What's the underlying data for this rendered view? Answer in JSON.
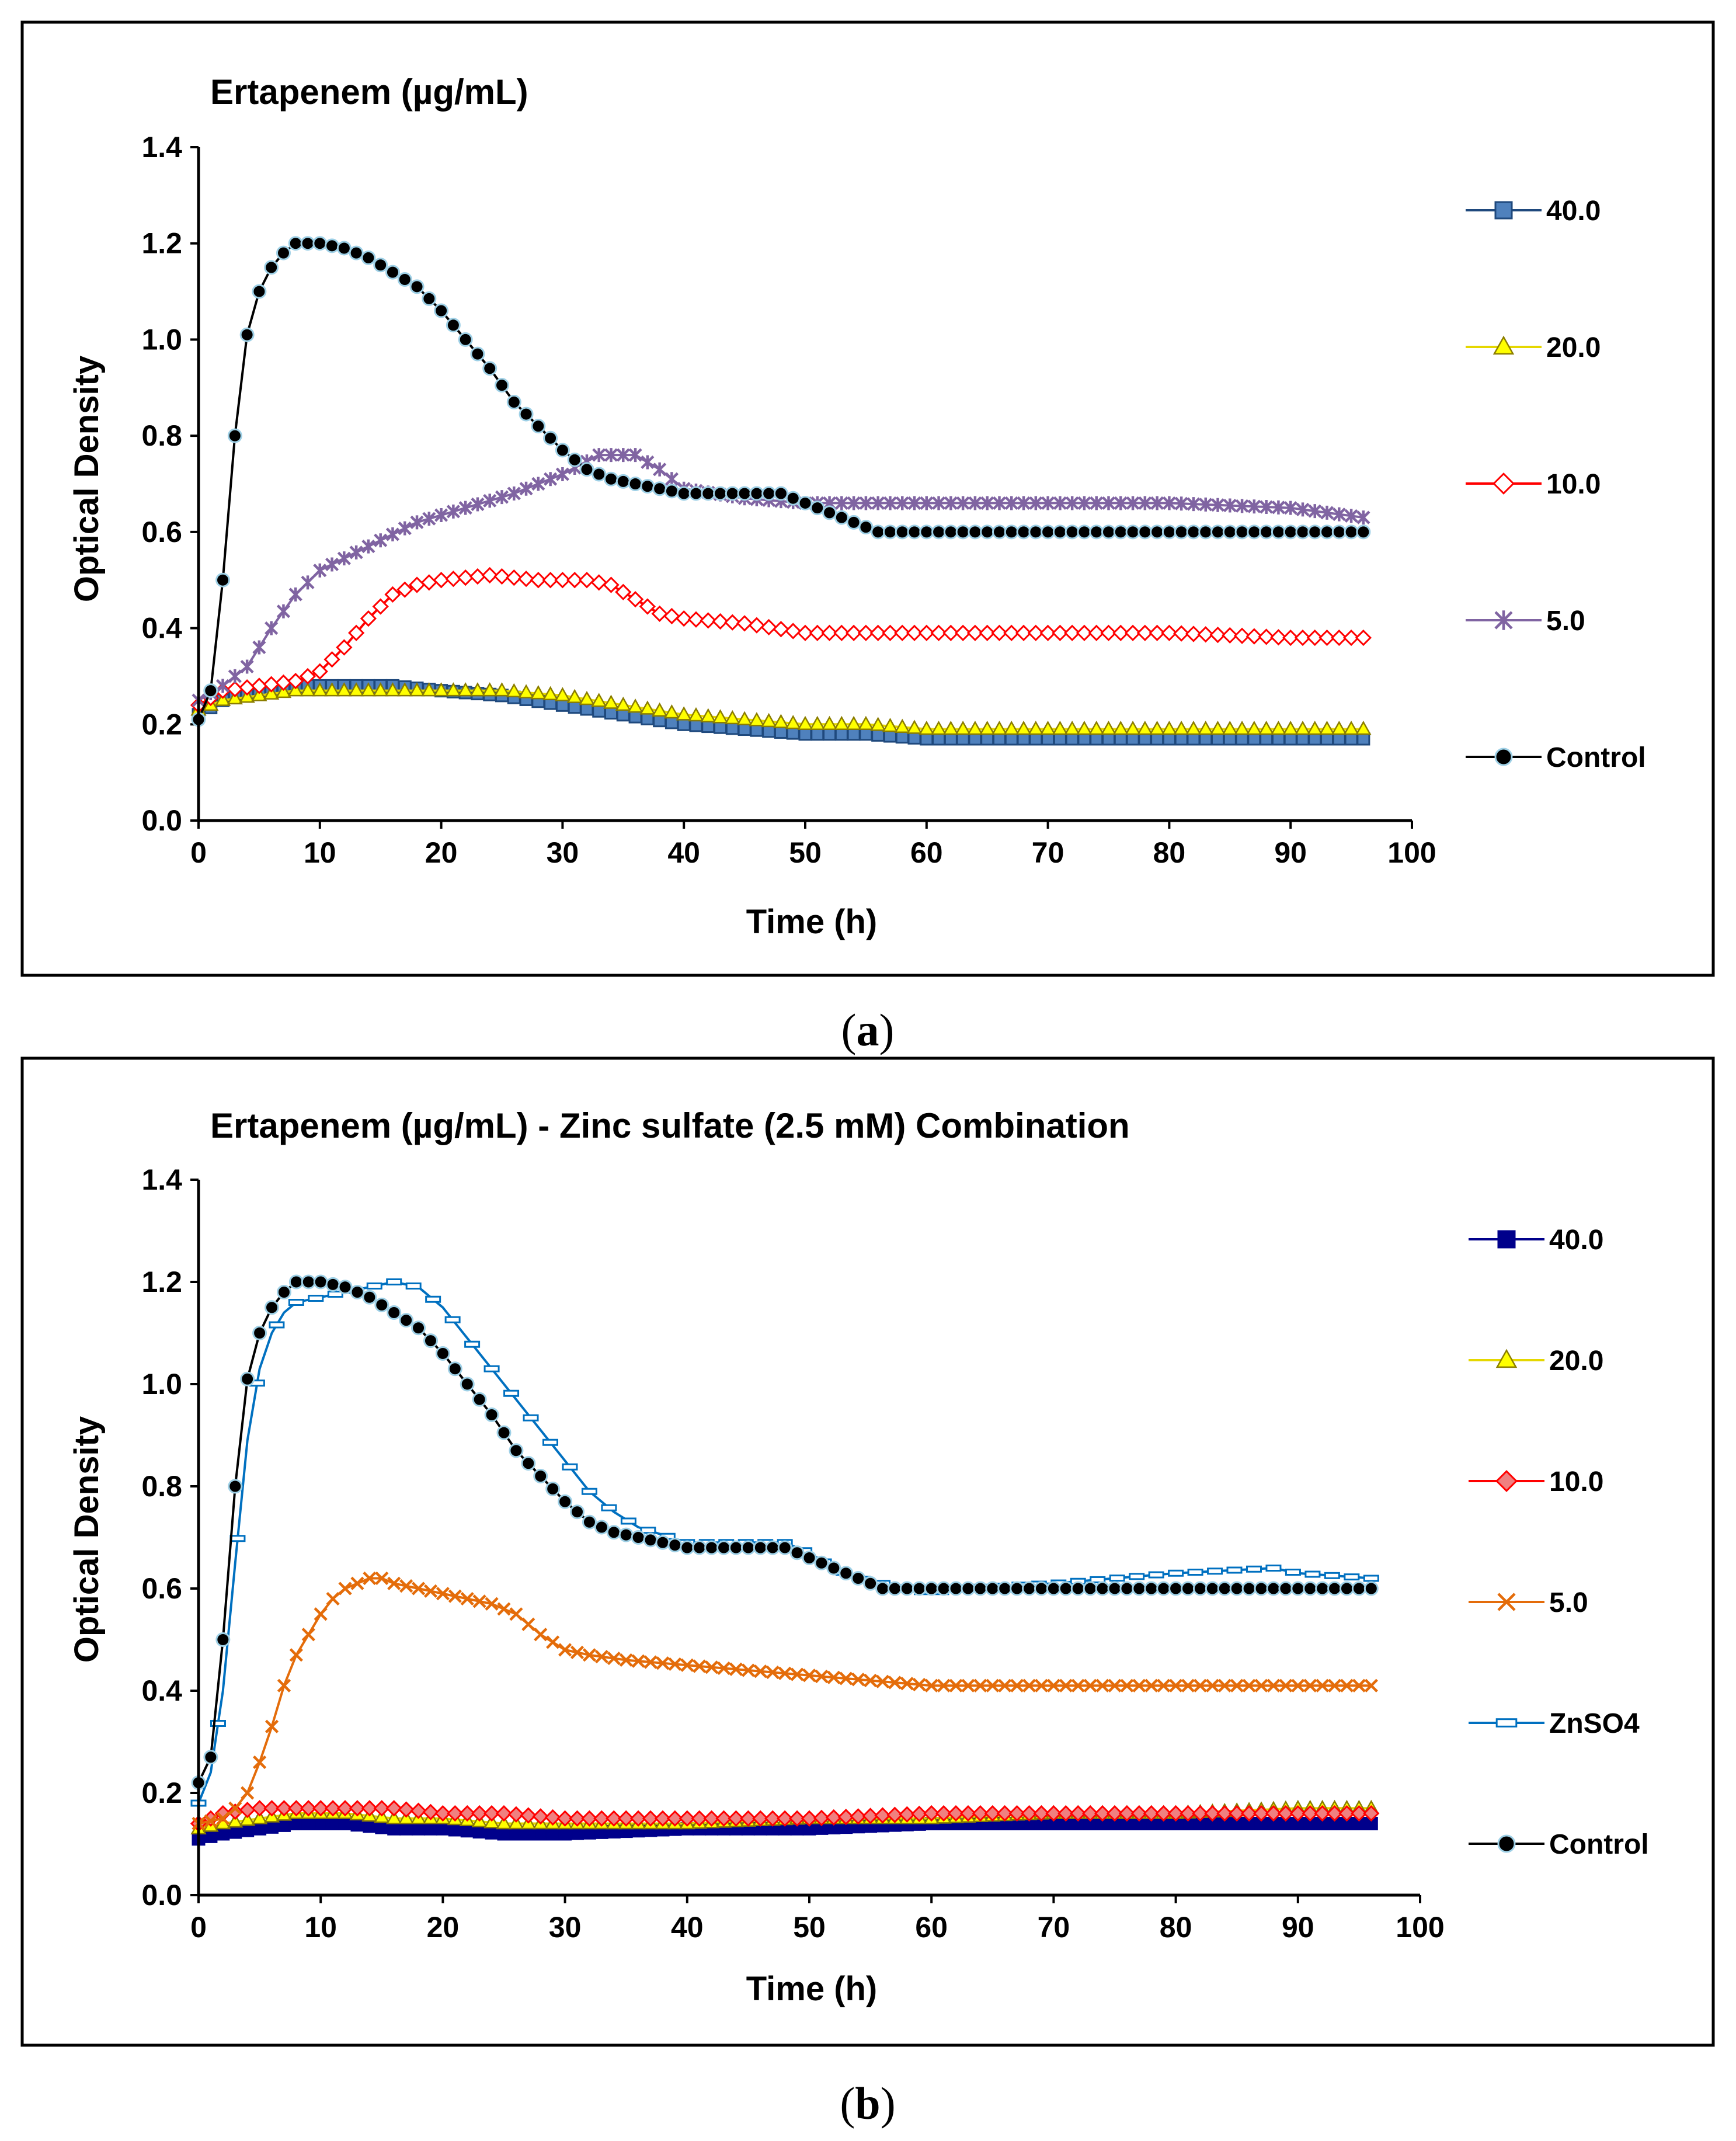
{
  "chart_data": [
    {
      "type": "line",
      "title": "Ertapenem (µg/mL)",
      "caption_open": "(",
      "caption_letter": "a",
      "caption_close": ")",
      "xlabel": "Time (h)",
      "ylabel": "Optical Density",
      "xlim": [
        0,
        100
      ],
      "ylim": [
        0,
        1.4
      ],
      "xticks": [
        "0",
        "10",
        "20",
        "30",
        "40",
        "50",
        "60",
        "70",
        "80",
        "90",
        "100"
      ],
      "yticks": [
        "0.0",
        "0.2",
        "0.4",
        "0.6",
        "0.8",
        "1.0",
        "1.2",
        "1.4"
      ],
      "legend_position": "right",
      "series": [
        {
          "name": "40.0",
          "color": "#4F81BD",
          "line": "#1F497D",
          "marker": "square",
          "x": [
            0,
            2,
            5,
            8,
            12,
            16,
            20,
            25,
            30,
            35,
            40,
            45,
            50,
            55,
            60,
            70,
            80,
            90,
            96
          ],
          "y": [
            0.22,
            0.25,
            0.27,
            0.28,
            0.28,
            0.28,
            0.27,
            0.26,
            0.24,
            0.22,
            0.2,
            0.19,
            0.18,
            0.18,
            0.17,
            0.17,
            0.17,
            0.17,
            0.17
          ]
        },
        {
          "name": "20.0",
          "color": "#FFFF00",
          "line": "#E5D700",
          "marker": "triangle",
          "x": [
            0,
            2,
            5,
            8,
            12,
            16,
            20,
            25,
            30,
            35,
            40,
            45,
            50,
            55,
            60,
            70,
            80,
            90,
            96
          ],
          "y": [
            0.23,
            0.25,
            0.26,
            0.27,
            0.27,
            0.27,
            0.27,
            0.27,
            0.26,
            0.24,
            0.22,
            0.21,
            0.2,
            0.2,
            0.19,
            0.19,
            0.19,
            0.19,
            0.19
          ]
        },
        {
          "name": "10.0",
          "color": "#FFFFFF",
          "line": "#FF0000",
          "marker": "diamond",
          "x": [
            0,
            2,
            5,
            8,
            10,
            12,
            14,
            16,
            18,
            20,
            24,
            28,
            32,
            34,
            36,
            38,
            40,
            45,
            50,
            55,
            60,
            70,
            80,
            90,
            96
          ],
          "y": [
            0.24,
            0.27,
            0.28,
            0.29,
            0.31,
            0.36,
            0.42,
            0.47,
            0.49,
            0.5,
            0.51,
            0.5,
            0.5,
            0.49,
            0.46,
            0.43,
            0.42,
            0.41,
            0.39,
            0.39,
            0.39,
            0.39,
            0.39,
            0.38,
            0.38
          ]
        },
        {
          "name": "5.0",
          "color": "#8064A2",
          "line": "#8064A2",
          "marker": "star",
          "x": [
            0,
            2,
            4,
            6,
            8,
            10,
            14,
            18,
            22,
            26,
            30,
            33,
            36,
            38,
            40,
            45,
            50,
            60,
            70,
            80,
            90,
            96
          ],
          "y": [
            0.25,
            0.28,
            0.32,
            0.4,
            0.47,
            0.52,
            0.57,
            0.62,
            0.65,
            0.68,
            0.72,
            0.76,
            0.76,
            0.73,
            0.69,
            0.67,
            0.66,
            0.66,
            0.66,
            0.66,
            0.65,
            0.63
          ]
        },
        {
          "name": "Control",
          "color": "#000000",
          "line": "#000000",
          "marker": "circle",
          "x": [
            0,
            1,
            2,
            3,
            4,
            5,
            6,
            7,
            8,
            10,
            12,
            14,
            16,
            18,
            20,
            22,
            24,
            26,
            28,
            30,
            32,
            34,
            36,
            40,
            44,
            48,
            50,
            52,
            54,
            56,
            58,
            60,
            70,
            80,
            90,
            96
          ],
          "y": [
            0.21,
            0.27,
            0.5,
            0.8,
            1.01,
            1.1,
            1.15,
            1.18,
            1.2,
            1.2,
            1.19,
            1.17,
            1.14,
            1.11,
            1.06,
            1.0,
            0.94,
            0.87,
            0.82,
            0.77,
            0.73,
            0.71,
            0.7,
            0.68,
            0.68,
            0.68,
            0.66,
            0.64,
            0.62,
            0.6,
            0.6,
            0.6,
            0.6,
            0.6,
            0.6,
            0.6
          ]
        }
      ]
    },
    {
      "type": "line",
      "title": "Ertapenem (µg/mL) - Zinc sulfate (2.5 mM) Combination",
      "caption_open": "(",
      "caption_letter": "b",
      "caption_close": ")",
      "xlabel": "Time (h)",
      "ylabel": "Optical Density",
      "xlim": [
        0,
        100
      ],
      "ylim": [
        0,
        1.4
      ],
      "xticks": [
        "0",
        "10",
        "20",
        "30",
        "40",
        "50",
        "60",
        "70",
        "80",
        "90",
        "100"
      ],
      "yticks": [
        "0.0",
        "0.2",
        "0.4",
        "0.6",
        "0.8",
        "1.0",
        "1.2",
        "1.4"
      ],
      "legend_position": "right",
      "series": [
        {
          "name": "40.0",
          "color": "#00008B",
          "line": "#00008B",
          "marker": "square",
          "x": [
            0,
            2,
            5,
            8,
            12,
            16,
            20,
            25,
            30,
            40,
            50,
            60,
            70,
            80,
            90,
            96
          ],
          "y": [
            0.11,
            0.12,
            0.13,
            0.14,
            0.14,
            0.13,
            0.13,
            0.12,
            0.12,
            0.13,
            0.13,
            0.14,
            0.14,
            0.14,
            0.14,
            0.14
          ]
        },
        {
          "name": "20.0",
          "color": "#FFFF00",
          "line": "#E5D700",
          "marker": "triangle",
          "x": [
            0,
            2,
            5,
            8,
            12,
            16,
            20,
            25,
            30,
            40,
            50,
            60,
            70,
            80,
            90,
            96
          ],
          "y": [
            0.13,
            0.14,
            0.15,
            0.16,
            0.16,
            0.15,
            0.15,
            0.14,
            0.14,
            0.14,
            0.15,
            0.15,
            0.16,
            0.16,
            0.17,
            0.17
          ]
        },
        {
          "name": "10.0",
          "color": "#F08080",
          "line": "#FF0000",
          "marker": "diamond",
          "x": [
            0,
            2,
            5,
            8,
            12,
            16,
            20,
            25,
            30,
            40,
            50,
            60,
            70,
            80,
            90,
            96
          ],
          "y": [
            0.14,
            0.16,
            0.17,
            0.17,
            0.17,
            0.17,
            0.16,
            0.16,
            0.15,
            0.15,
            0.15,
            0.16,
            0.16,
            0.16,
            0.16,
            0.16
          ]
        },
        {
          "name": "5.0",
          "color": "#E46C0A",
          "line": "#E46C0A",
          "marker": "x",
          "x": [
            0,
            2,
            3,
            4,
            5,
            6,
            7,
            8,
            9,
            10,
            11,
            12,
            13,
            14,
            15,
            16,
            18,
            20,
            22,
            24,
            26,
            28,
            30,
            32,
            35,
            40,
            45,
            50,
            55,
            60,
            70,
            80,
            90,
            96
          ],
          "y": [
            0.14,
            0.15,
            0.17,
            0.2,
            0.26,
            0.33,
            0.41,
            0.47,
            0.51,
            0.55,
            0.58,
            0.6,
            0.61,
            0.62,
            0.62,
            0.61,
            0.6,
            0.59,
            0.58,
            0.57,
            0.55,
            0.51,
            0.48,
            0.47,
            0.46,
            0.45,
            0.44,
            0.43,
            0.42,
            0.41,
            0.41,
            0.41,
            0.41,
            0.41
          ]
        },
        {
          "name": "ZnSO4",
          "color": "#FFFFFF",
          "line": "#0070C0",
          "marker": "dash",
          "x": [
            0,
            1,
            2,
            3,
            4,
            5,
            6,
            7,
            8,
            10,
            12,
            14,
            16,
            18,
            20,
            22,
            24,
            26,
            28,
            30,
            32,
            34,
            36,
            40,
            44,
            48,
            50,
            52,
            54,
            56,
            58,
            60,
            62,
            70,
            80,
            88,
            90,
            96
          ],
          "y": [
            0.18,
            0.24,
            0.4,
            0.65,
            0.89,
            1.03,
            1.1,
            1.14,
            1.16,
            1.17,
            1.18,
            1.19,
            1.2,
            1.19,
            1.15,
            1.09,
            1.03,
            0.97,
            0.91,
            0.85,
            0.79,
            0.75,
            0.72,
            0.69,
            0.69,
            0.69,
            0.67,
            0.64,
            0.62,
            0.61,
            0.6,
            0.59,
            0.6,
            0.61,
            0.63,
            0.64,
            0.63,
            0.62
          ]
        },
        {
          "name": "Control",
          "color": "#000000",
          "line": "#000000",
          "marker": "circle",
          "x": [
            0,
            1,
            2,
            3,
            4,
            5,
            6,
            7,
            8,
            10,
            12,
            14,
            16,
            18,
            20,
            22,
            24,
            26,
            28,
            30,
            32,
            34,
            36,
            40,
            44,
            48,
            50,
            52,
            54,
            56,
            58,
            60,
            70,
            80,
            90,
            96
          ],
          "y": [
            0.22,
            0.27,
            0.5,
            0.8,
            1.01,
            1.1,
            1.15,
            1.18,
            1.2,
            1.2,
            1.19,
            1.17,
            1.14,
            1.11,
            1.06,
            1.0,
            0.94,
            0.87,
            0.82,
            0.77,
            0.73,
            0.71,
            0.7,
            0.68,
            0.68,
            0.68,
            0.66,
            0.64,
            0.62,
            0.6,
            0.6,
            0.6,
            0.6,
            0.6,
            0.6,
            0.6
          ]
        }
      ]
    }
  ]
}
